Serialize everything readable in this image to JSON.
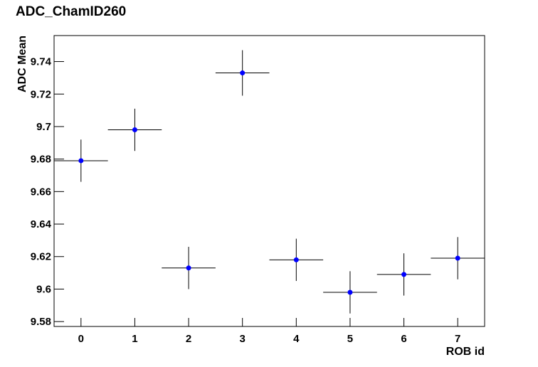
{
  "chart_data": {
    "type": "scatter",
    "title": "ADC_ChamID260",
    "xlabel": "ROB id",
    "ylabel": "ADC Mean",
    "x": [
      0,
      1,
      2,
      3,
      4,
      5,
      6,
      7
    ],
    "xerr": [
      0.5,
      0.5,
      0.5,
      0.5,
      0.5,
      0.5,
      0.5,
      0.5
    ],
    "values": [
      9.679,
      9.698,
      9.613,
      9.733,
      9.618,
      9.598,
      9.609,
      9.619
    ],
    "yerr": [
      0.013,
      0.013,
      0.013,
      0.014,
      0.013,
      0.013,
      0.013,
      0.013
    ],
    "color": "#0000ff",
    "xlim": [
      -0.5,
      7.5
    ],
    "xticks": [
      0,
      1,
      2,
      3,
      4,
      5,
      6,
      7
    ],
    "ylim": [
      9.577,
      9.756
    ],
    "yticks": [
      9.58,
      9.6,
      9.62,
      9.64,
      9.66,
      9.68,
      9.7,
      9.72,
      9.74
    ]
  }
}
